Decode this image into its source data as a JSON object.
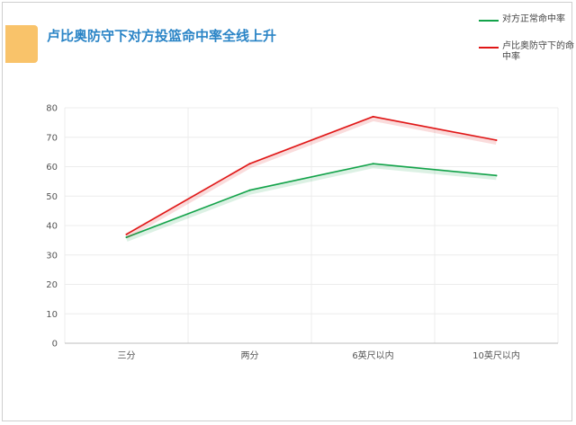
{
  "header": {
    "title": "卢比奥防守下对方投篮命中率全线上升"
  },
  "colors": {
    "accent": "#f9c36a",
    "title": "#2a84c6",
    "series_green": "#13a34a",
    "series_red": "#e01616"
  },
  "chart_data": {
    "type": "line",
    "title": "卢比奥防守下对方投篮命中率全线上升",
    "xlabel": "",
    "ylabel": "",
    "categories": [
      "三分",
      "两分",
      "6英尺以内",
      "10英尺以内"
    ],
    "ylim": [
      0,
      80
    ],
    "yticks": [
      "0",
      "10",
      "20",
      "30",
      "40",
      "50",
      "60",
      "70",
      "80"
    ],
    "grid": true,
    "legend_position": "top-right",
    "series": [
      {
        "name": "对方正常命中率",
        "color": "#13a34a",
        "values": [
          36,
          52,
          61,
          57
        ]
      },
      {
        "name": "卢比奥防守下的命中率",
        "color": "#e01616",
        "values": [
          37,
          61,
          77,
          69
        ]
      }
    ]
  }
}
